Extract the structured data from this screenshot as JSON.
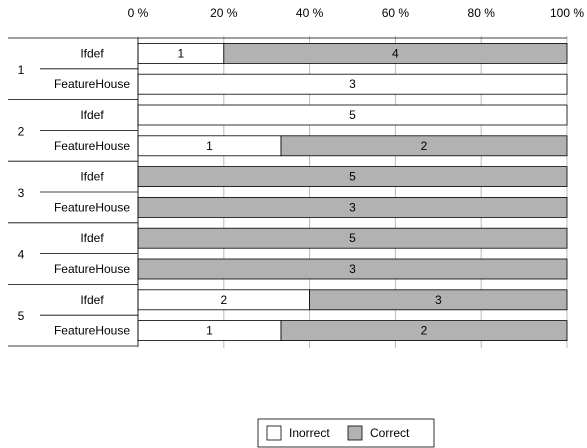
{
  "chart_data": {
    "type": "bar",
    "orientation": "horizontal",
    "stacking": "percent",
    "xlim": [
      0,
      100
    ],
    "x_ticks": [
      {
        "value": 0,
        "label": "0 %"
      },
      {
        "value": 20,
        "label": "20 %"
      },
      {
        "value": 40,
        "label": "40 %"
      },
      {
        "value": 60,
        "label": "60 %"
      },
      {
        "value": 80,
        "label": "80 %"
      },
      {
        "value": 100,
        "label": "100 %"
      }
    ],
    "groups": [
      {
        "label": "1",
        "bars": [
          {
            "label": "Ifdef",
            "incorrect": 1,
            "correct": 4
          },
          {
            "label": "FeatureHouse",
            "incorrect": 3,
            "correct": 0
          }
        ]
      },
      {
        "label": "2",
        "bars": [
          {
            "label": "Ifdef",
            "incorrect": 5,
            "correct": 0
          },
          {
            "label": "FeatureHouse",
            "incorrect": 1,
            "correct": 2
          }
        ]
      },
      {
        "label": "3",
        "bars": [
          {
            "label": "Ifdef",
            "incorrect": 0,
            "correct": 5
          },
          {
            "label": "FeatureHouse",
            "incorrect": 0,
            "correct": 3
          }
        ]
      },
      {
        "label": "4",
        "bars": [
          {
            "label": "Ifdef",
            "incorrect": 0,
            "correct": 5
          },
          {
            "label": "FeatureHouse",
            "incorrect": 0,
            "correct": 3
          }
        ]
      },
      {
        "label": "5",
        "bars": [
          {
            "label": "Ifdef",
            "incorrect": 2,
            "correct": 3
          },
          {
            "label": "FeatureHouse",
            "incorrect": 1,
            "correct": 2
          }
        ]
      }
    ],
    "series": [
      {
        "key": "incorrect",
        "name": "Inorrect",
        "color": "#ffffff"
      },
      {
        "key": "correct",
        "name": "Correct",
        "color": "#b2b2b2"
      }
    ],
    "grid": true,
    "legend_position": "bottom-center"
  }
}
